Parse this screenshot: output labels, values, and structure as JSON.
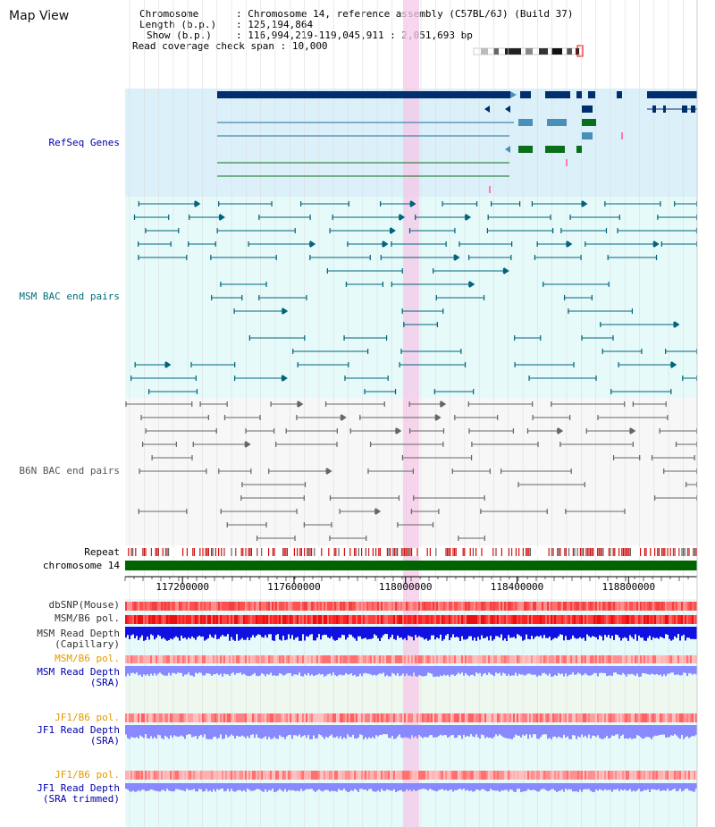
{
  "header": {
    "view_title": "Map View",
    "chromosome_key": "Chromosome",
    "chromosome_value": ": Chromosome 14, reference assembly (C57BL/6J) (Build 37)",
    "length_key": "Length (b.p.)",
    "length_value": ": 125,194,864",
    "show_key": "Show (b.p.)",
    "show_value": ": 116,994,219-119,045,911 : 2,051,693 bp",
    "coverage_key": "Read coverage check span",
    "coverage_value": ": 10,000"
  },
  "tracks": {
    "refseq": "RefSeq Genes",
    "msm_bac": "MSM BAC end pairs",
    "b6n_bac": "B6N BAC end pairs",
    "repeat": "Repeat",
    "chromosome": "chromosome 14",
    "dbsnp": "dbSNP(Mouse)",
    "msm_b6_pol": "MSM/B6 pol.",
    "msm_read_depth_cap_1": "MSM Read Depth",
    "msm_read_depth_cap_2": "(Capillary)",
    "msm_b6_pol_2": "MSM/B6 pol.",
    "msm_read_depth_sra_1": "MSM Read Depth",
    "msm_read_depth_sra_2": "(SRA)",
    "jf1_b6_pol": "JF1/B6 pol.",
    "jf1_read_depth_sra_1": "JF1 Read Depth",
    "jf1_read_depth_sra_2": "(SRA)",
    "jf1_b6_pol_2": "JF1/B6 pol.",
    "jf1_read_depth_trim_1": "JF1 Read Depth",
    "jf1_read_depth_trim_2": "(SRA trimmed)"
  },
  "axis": {
    "ticks": [
      "117200000",
      "117600000",
      "118000000",
      "118400000",
      "118800000"
    ],
    "tick_values": [
      117200000,
      117600000,
      118000000,
      118400000,
      118800000
    ],
    "range": [
      116994219,
      119045911
    ]
  },
  "colors": {
    "refseq_bg": "#dcf0fa",
    "msm_bg": "#e6fafa",
    "highlight": "#f8d0ec",
    "chromosome_bar": "#006400",
    "gene_dark": "#002e6e",
    "gene_light": "#4a8fb8",
    "gene_green": "#0a6e1a",
    "bac_teal": "#00647a",
    "bac_gray": "#666666",
    "depth_blue": "#1010e0",
    "depth_light": "#8888ff",
    "pol_red": "#ff3030"
  }
}
